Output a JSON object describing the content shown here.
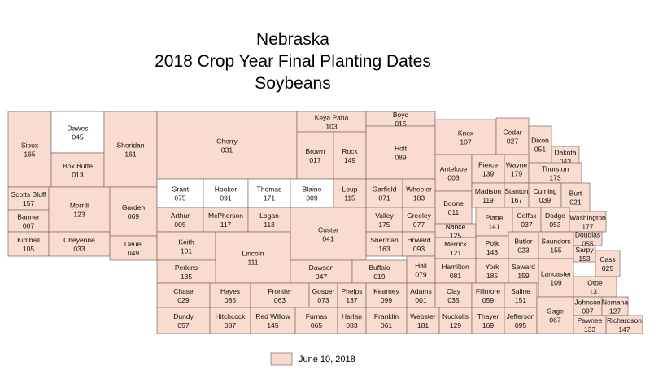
{
  "title": [
    "Nebraska",
    "2018 Crop Year Final Planting Dates",
    "Soybeans"
  ],
  "legend": {
    "label": "June 10, 2018",
    "color": "#fadbcf"
  },
  "counties": [
    {
      "name": "Sioux",
      "code": "165",
      "color": "#fadbcf"
    },
    {
      "name": "Dawes",
      "code": "045",
      "color": "#ffffff"
    },
    {
      "name": "Box Butte",
      "code": "013",
      "color": "#fadbcf"
    },
    {
      "name": "Sheridan",
      "code": "161",
      "color": "#fadbcf"
    },
    {
      "name": "Cherry",
      "code": "031",
      "color": "#fadbcf"
    },
    {
      "name": "Keya Paha",
      "code": "103",
      "color": "#fadbcf"
    },
    {
      "name": "Boyd",
      "code": "015",
      "color": "#fadbcf"
    },
    {
      "name": "Brown",
      "code": "017",
      "color": "#fadbcf"
    },
    {
      "name": "Rock",
      "code": "149",
      "color": "#fadbcf"
    },
    {
      "name": "Holt",
      "code": "089",
      "color": "#fadbcf"
    },
    {
      "name": "Knox",
      "code": "107",
      "color": "#fadbcf"
    },
    {
      "name": "Cedar",
      "code": "027",
      "color": "#fadbcf"
    },
    {
      "name": "Dixon",
      "code": "051",
      "color": "#fadbcf"
    },
    {
      "name": "Dakota",
      "code": "043",
      "color": "#fadbcf"
    },
    {
      "name": "Antelope",
      "code": "003",
      "color": "#fadbcf"
    },
    {
      "name": "Pierce",
      "code": "139",
      "color": "#fadbcf"
    },
    {
      "name": "Wayne",
      "code": "179",
      "color": "#fadbcf"
    },
    {
      "name": "Thurston",
      "code": "173",
      "color": "#fadbcf"
    },
    {
      "name": "Scotts Bluff",
      "code": "157",
      "color": "#fadbcf"
    },
    {
      "name": "Banner",
      "code": "007",
      "color": "#fadbcf"
    },
    {
      "name": "Kimball",
      "code": "105",
      "color": "#fadbcf"
    },
    {
      "name": "Morrill",
      "code": "123",
      "color": "#fadbcf"
    },
    {
      "name": "Cheyenne",
      "code": "033",
      "color": "#fadbcf"
    },
    {
      "name": "Garden",
      "code": "069",
      "color": "#fadbcf"
    },
    {
      "name": "Deuel",
      "code": "049",
      "color": "#fadbcf"
    },
    {
      "name": "Grant",
      "code": "075",
      "color": "#ffffff"
    },
    {
      "name": "Hooker",
      "code": "091",
      "color": "#ffffff"
    },
    {
      "name": "Thomas",
      "code": "171",
      "color": "#ffffff"
    },
    {
      "name": "Blaine",
      "code": "009",
      "color": "#ffffff"
    },
    {
      "name": "Loup",
      "code": "115",
      "color": "#fadbcf"
    },
    {
      "name": "Garfield",
      "code": "071",
      "color": "#fadbcf"
    },
    {
      "name": "Wheeler",
      "code": "183",
      "color": "#fadbcf"
    },
    {
      "name": "Boone",
      "code": "011",
      "color": "#fadbcf"
    },
    {
      "name": "Madison",
      "code": "119",
      "color": "#fadbcf"
    },
    {
      "name": "Stanton",
      "code": "167",
      "color": "#fadbcf"
    },
    {
      "name": "Cuming",
      "code": "039",
      "color": "#fadbcf"
    },
    {
      "name": "Burt",
      "code": "021",
      "color": "#fadbcf"
    },
    {
      "name": "Arthur",
      "code": "005",
      "color": "#fadbcf"
    },
    {
      "name": "McPherson",
      "code": "117",
      "color": "#fadbcf"
    },
    {
      "name": "Logan",
      "code": "113",
      "color": "#fadbcf"
    },
    {
      "name": "Custer",
      "code": "041",
      "color": "#fadbcf"
    },
    {
      "name": "Valley",
      "code": "175",
      "color": "#fadbcf"
    },
    {
      "name": "Greeley",
      "code": "077",
      "color": "#fadbcf"
    },
    {
      "name": "Nance",
      "code": "125",
      "color": "#fadbcf"
    },
    {
      "name": "Platte",
      "code": "141",
      "color": "#fadbcf"
    },
    {
      "name": "Colfax",
      "code": "037",
      "color": "#fadbcf"
    },
    {
      "name": "Dodge",
      "code": "053",
      "color": "#fadbcf"
    },
    {
      "name": "Washington",
      "code": "177",
      "color": "#fadbcf"
    },
    {
      "name": "Keith",
      "code": "101",
      "color": "#fadbcf"
    },
    {
      "name": "Lincoln",
      "code": "111",
      "color": "#fadbcf"
    },
    {
      "name": "Sherman",
      "code": "163",
      "color": "#fadbcf"
    },
    {
      "name": "Howard",
      "code": "093",
      "color": "#fadbcf"
    },
    {
      "name": "Merrick",
      "code": "121",
      "color": "#fadbcf"
    },
    {
      "name": "Polk",
      "code": "143",
      "color": "#fadbcf"
    },
    {
      "name": "Butler",
      "code": "023",
      "color": "#fadbcf"
    },
    {
      "name": "Saunders",
      "code": "155",
      "color": "#fadbcf"
    },
    {
      "name": "Douglas",
      "code": "055",
      "color": "#fadbcf"
    },
    {
      "name": "Sarpy",
      "code": "153",
      "color": "#fadbcf"
    },
    {
      "name": "Perkins",
      "code": "135",
      "color": "#fadbcf"
    },
    {
      "name": "Dawson",
      "code": "047",
      "color": "#fadbcf"
    },
    {
      "name": "Buffalo",
      "code": "019",
      "color": "#fadbcf"
    },
    {
      "name": "Hall",
      "code": "079",
      "color": "#fadbcf"
    },
    {
      "name": "Hamilton",
      "code": "081",
      "color": "#fadbcf"
    },
    {
      "name": "York",
      "code": "185",
      "color": "#fadbcf"
    },
    {
      "name": "Seward",
      "code": "159",
      "color": "#fadbcf"
    },
    {
      "name": "Lancaster",
      "code": "109",
      "color": "#fadbcf"
    },
    {
      "name": "Cass",
      "code": "025",
      "color": "#fadbcf"
    },
    {
      "name": "Chase",
      "code": "029",
      "color": "#fadbcf"
    },
    {
      "name": "Hayes",
      "code": "085",
      "color": "#fadbcf"
    },
    {
      "name": "Frontier",
      "code": "063",
      "color": "#fadbcf"
    },
    {
      "name": "Gosper",
      "code": "073",
      "color": "#fadbcf"
    },
    {
      "name": "Phelps",
      "code": "137",
      "color": "#fadbcf"
    },
    {
      "name": "Kearney",
      "code": "099",
      "color": "#fadbcf"
    },
    {
      "name": "Adams",
      "code": "001",
      "color": "#fadbcf"
    },
    {
      "name": "Clay",
      "code": "035",
      "color": "#fadbcf"
    },
    {
      "name": "Fillmore",
      "code": "059",
      "color": "#fadbcf"
    },
    {
      "name": "Saline",
      "code": "151",
      "color": "#fadbcf"
    },
    {
      "name": "Otoe",
      "code": "131",
      "color": "#fadbcf"
    },
    {
      "name": "Dundy",
      "code": "057",
      "color": "#fadbcf"
    },
    {
      "name": "Hitchcock",
      "code": "087",
      "color": "#fadbcf"
    },
    {
      "name": "Red Willow",
      "code": "145",
      "color": "#fadbcf"
    },
    {
      "name": "Furnas",
      "code": "065",
      "color": "#fadbcf"
    },
    {
      "name": "Harlan",
      "code": "083",
      "color": "#fadbcf"
    },
    {
      "name": "Franklin",
      "code": "061",
      "color": "#fadbcf"
    },
    {
      "name": "Webster",
      "code": "181",
      "color": "#fadbcf"
    },
    {
      "name": "Nuckolls",
      "code": "129",
      "color": "#fadbcf"
    },
    {
      "name": "Thayer",
      "code": "169",
      "color": "#fadbcf"
    },
    {
      "name": "Jefferson",
      "code": "095",
      "color": "#fadbcf"
    },
    {
      "name": "Gage",
      "code": "067",
      "color": "#fadbcf"
    },
    {
      "name": "Johnson",
      "code": "097",
      "color": "#fadbcf"
    },
    {
      "name": "Nemaha",
      "code": "127",
      "color": "#fadbcf"
    },
    {
      "name": "Pawnee",
      "code": "133",
      "color": "#fadbcf"
    },
    {
      "name": "Richardson",
      "code": "147",
      "color": "#fadbcf"
    }
  ]
}
